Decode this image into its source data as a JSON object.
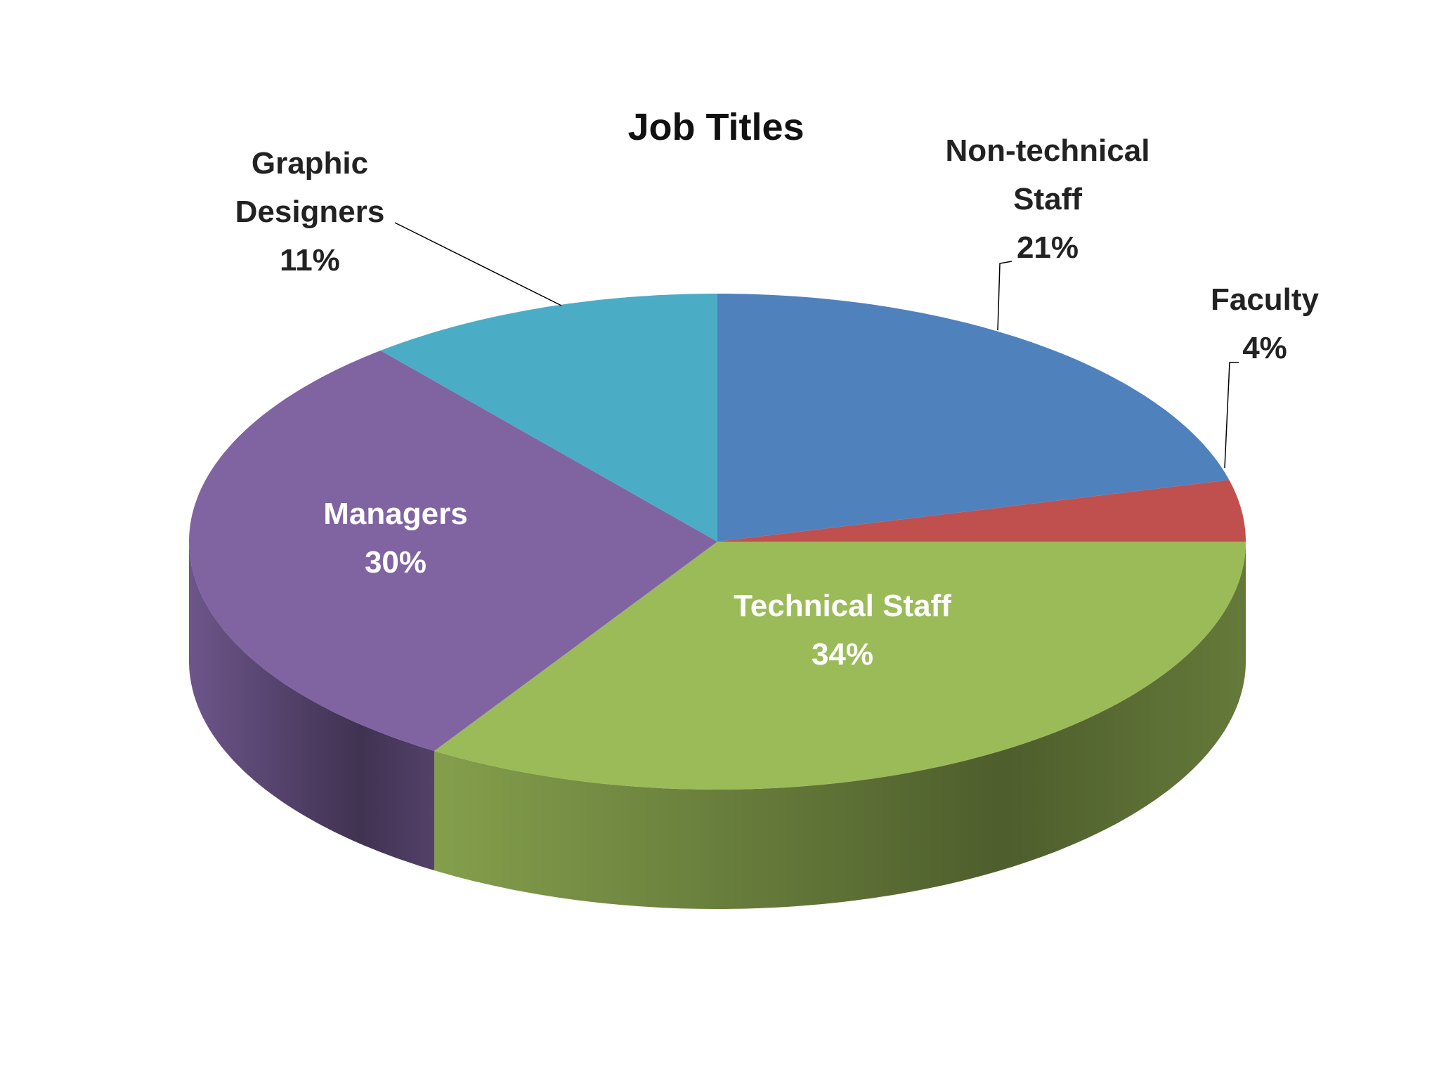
{
  "chart_data": {
    "type": "pie3d",
    "title": "Job Titles",
    "categories": [
      "Non-technical Staff",
      "Faculty",
      "Technical Staff",
      "Managers",
      "Graphic Designers"
    ],
    "values": [
      21,
      4,
      34,
      30,
      11
    ],
    "value_labels": [
      "21%",
      "4%",
      "34%",
      "30%",
      "11%"
    ],
    "colors": [
      "#4f81bd",
      "#c0504d",
      "#9bbb59",
      "#8064a2",
      "#4bacc6"
    ]
  }
}
